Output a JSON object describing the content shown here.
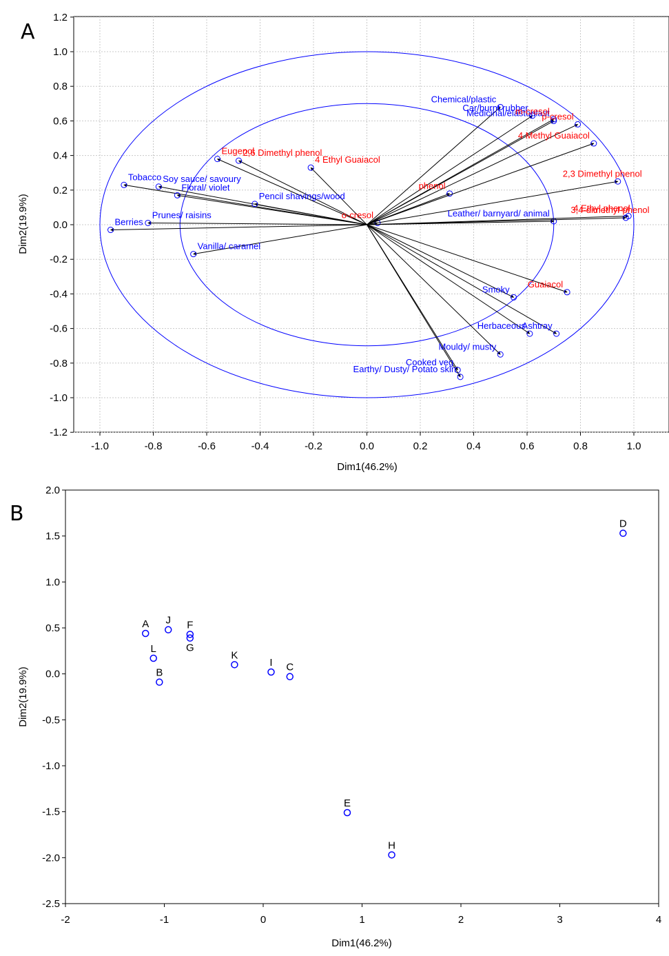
{
  "chart_data": [
    {
      "type": "scatter",
      "subtype": "correlation-circle",
      "panel_label": "A",
      "xlabel": "Dim1(46.2%)",
      "ylabel": "Dim2(19.9%)",
      "xlim": [
        -1.1,
        1.1
      ],
      "ylim": [
        -1.2,
        1.2
      ],
      "xticks": [
        "-1.0",
        "-0.8",
        "-0.6",
        "-0.4",
        "-0.2",
        "0.0",
        "0.2",
        "0.4",
        "0.6",
        "0.8",
        "1.0"
      ],
      "yticks": [
        "1.2",
        "1.0",
        "0.8",
        "0.6",
        "0.4",
        "0.2",
        "0.0",
        "-0.2",
        "-0.4",
        "-0.6",
        "-0.8",
        "-1.0",
        "-1.2"
      ],
      "grid": true,
      "circles_r": [
        1.0,
        0.7
      ],
      "colors": {
        "sensory": "#0000ff",
        "compound": "#ff0000",
        "circle": "#0000ff",
        "arrow": "#000000"
      },
      "vectors": [
        {
          "label": "Tobacco",
          "group": "sensory",
          "x": -0.91,
          "y": 0.23
        },
        {
          "label": "Soy sauce/ savoury",
          "group": "sensory",
          "x": -0.78,
          "y": 0.22
        },
        {
          "label": "Floral/ violet",
          "group": "sensory",
          "x": -0.71,
          "y": 0.17
        },
        {
          "label": "Pencil shavings/wood",
          "group": "sensory",
          "x": -0.42,
          "y": 0.12
        },
        {
          "label": "Prunes/ raisins",
          "group": "sensory",
          "x": -0.82,
          "y": 0.01
        },
        {
          "label": "Berries",
          "group": "sensory",
          "x": -0.96,
          "y": -0.03
        },
        {
          "label": "Vanilla/ caramel",
          "group": "sensory",
          "x": -0.65,
          "y": -0.17
        },
        {
          "label": "Chemical/plastic",
          "group": "sensory",
          "x": 0.5,
          "y": 0.68
        },
        {
          "label": "Car/burnt rubber",
          "group": "sensory",
          "x": 0.62,
          "y": 0.63
        },
        {
          "label": "Medicinal/elastoplast",
          "group": "sensory",
          "x": 0.7,
          "y": 0.6
        },
        {
          "label": "Leather/ barnyard/ animal",
          "group": "sensory",
          "x": 0.7,
          "y": 0.02
        },
        {
          "label": "Smoky",
          "group": "sensory",
          "x": 0.55,
          "y": -0.42
        },
        {
          "label": "Herbaceous",
          "group": "sensory",
          "x": 0.61,
          "y": -0.63
        },
        {
          "label": "Ashtray",
          "group": "sensory",
          "x": 0.71,
          "y": -0.63
        },
        {
          "label": "Mouldy/ musty",
          "group": "sensory",
          "x": 0.5,
          "y": -0.75
        },
        {
          "label": "Cooked veg",
          "group": "sensory",
          "x": 0.34,
          "y": -0.84
        },
        {
          "label": "Earthy/ Dusty/ Potato skin",
          "group": "sensory",
          "x": 0.35,
          "y": -0.88
        },
        {
          "label": "Eugenol",
          "group": "compound",
          "x": -0.56,
          "y": 0.38
        },
        {
          "label": "2,6 Dimethyl phenol",
          "group": "compound",
          "x": -0.48,
          "y": 0.37
        },
        {
          "label": "4 Ethyl Guaiacol",
          "group": "compound",
          "x": -0.21,
          "y": 0.33
        },
        {
          "label": "o-cresol",
          "group": "compound",
          "x": 0.04,
          "y": 0.01
        },
        {
          "label": "phenol",
          "group": "compound",
          "x": 0.31,
          "y": 0.18
        },
        {
          "label": "m-cresol",
          "group": "compound",
          "x": 0.7,
          "y": 0.61
        },
        {
          "label": "p-cresol",
          "group": "compound",
          "x": 0.79,
          "y": 0.58
        },
        {
          "label": "4 Methyl Guaiacol",
          "group": "compound",
          "x": 0.85,
          "y": 0.47
        },
        {
          "label": "2,3 Dimethyl phenol",
          "group": "compound",
          "x": 0.94,
          "y": 0.25
        },
        {
          "label": "4 Ethyl phenol",
          "group": "compound",
          "x": 0.98,
          "y": 0.05
        },
        {
          "label": "3,4-dimethyl-phenol",
          "group": "compound",
          "x": 0.97,
          "y": 0.04
        },
        {
          "label": "Guaiacol",
          "group": "compound",
          "x": 0.75,
          "y": -0.39
        }
      ]
    },
    {
      "type": "scatter",
      "panel_label": "B",
      "xlabel": "Dim1(46.2%)",
      "ylabel": "Dim2(19.9%)",
      "xlim": [
        -2,
        4
      ],
      "ylim": [
        -2.5,
        2.0
      ],
      "xticks": [
        "-2",
        "-1",
        "0",
        "1",
        "2",
        "3",
        "4"
      ],
      "yticks": [
        "2.0",
        "1.5",
        "1.0",
        "0.5",
        "0.0",
        "-0.5",
        "-1.0",
        "-1.5",
        "-2.0",
        "-2.5"
      ],
      "grid": false,
      "colors": {
        "marker": "#0000ff",
        "label": "#000000"
      },
      "points": [
        {
          "label": "A",
          "x": -1.19,
          "y": 0.44
        },
        {
          "label": "J",
          "x": -0.96,
          "y": 0.48
        },
        {
          "label": "F",
          "x": -0.74,
          "y": 0.43
        },
        {
          "label": "G",
          "x": -0.74,
          "y": 0.39
        },
        {
          "label": "L",
          "x": -1.11,
          "y": 0.17
        },
        {
          "label": "B",
          "x": -1.05,
          "y": -0.09
        },
        {
          "label": "K",
          "x": -0.29,
          "y": 0.1
        },
        {
          "label": "I",
          "x": 0.08,
          "y": 0.02
        },
        {
          "label": "C",
          "x": 0.27,
          "y": -0.03
        },
        {
          "label": "D",
          "x": 3.64,
          "y": 1.53
        },
        {
          "label": "E",
          "x": 0.85,
          "y": -1.51
        },
        {
          "label": "H",
          "x": 1.3,
          "y": -1.97
        }
      ]
    }
  ]
}
